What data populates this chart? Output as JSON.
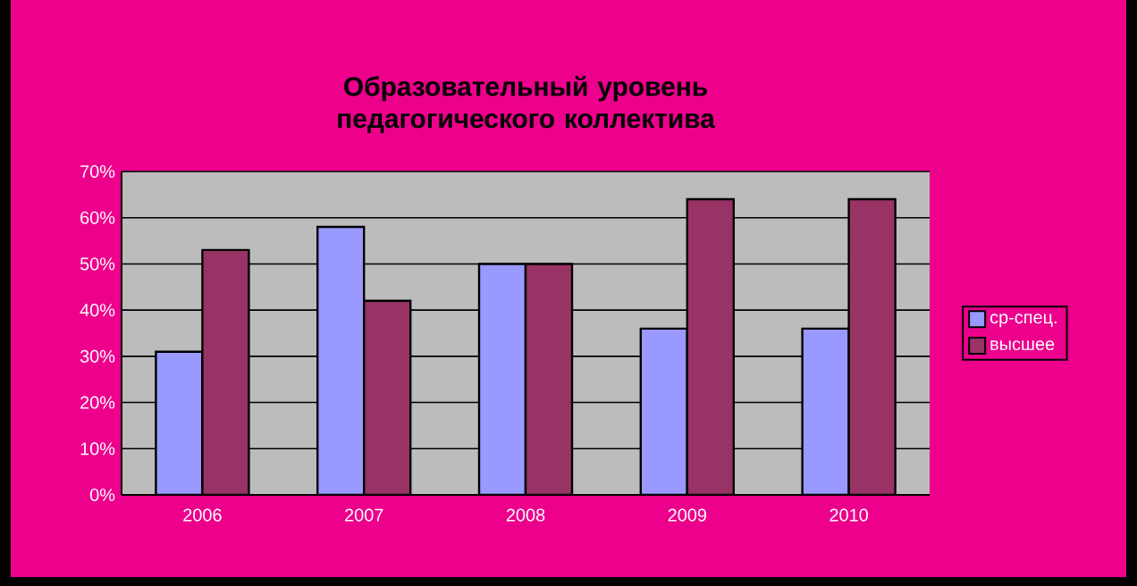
{
  "chart_data": {
    "type": "bar",
    "title": "Образовательный уровень педагогического коллектива",
    "categories": [
      "2006",
      "2007",
      "2008",
      "2009",
      "2010"
    ],
    "series": [
      {
        "name": "ср-спец.",
        "color": "#9999ff",
        "values": [
          31,
          58,
          50,
          36,
          36
        ]
      },
      {
        "name": "высшее",
        "color": "#993366",
        "values": [
          53,
          42,
          50,
          64,
          64
        ]
      }
    ],
    "ylim": [
      0,
      70
    ],
    "yticks": [
      {
        "value": 0,
        "label": "0%"
      },
      {
        "value": 10,
        "label": "10%"
      },
      {
        "value": 20,
        "label": "20%"
      },
      {
        "value": 30,
        "label": "30%"
      },
      {
        "value": 40,
        "label": "40%"
      },
      {
        "value": 50,
        "label": "50%"
      },
      {
        "value": 60,
        "label": "60%"
      },
      {
        "value": 70,
        "label": "70%"
      }
    ],
    "grid": "y",
    "legend": "right"
  }
}
